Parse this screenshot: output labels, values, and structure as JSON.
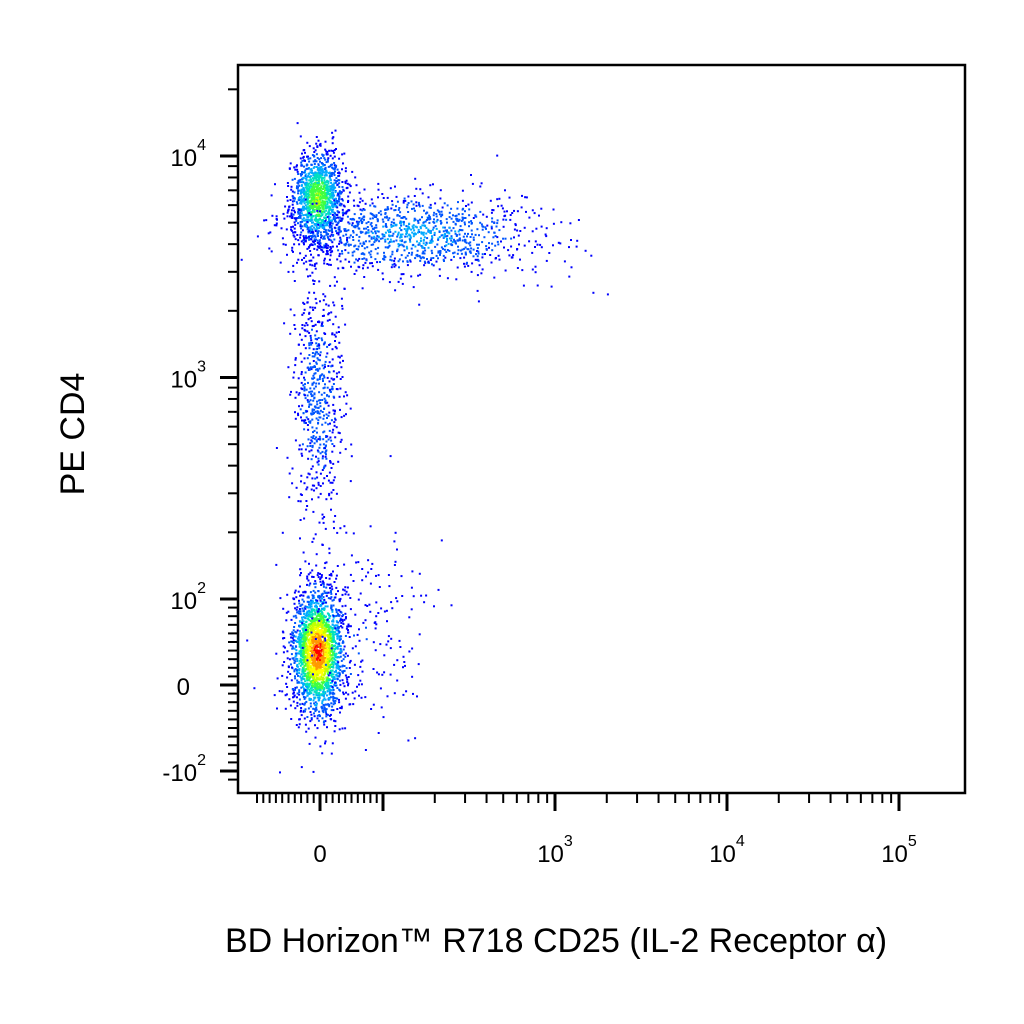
{
  "chart_data": {
    "type": "scatter",
    "plot_style": "flow cytometry pseudocolor density dot plot (biexponential axes)",
    "xlabel": "BD Horizon™ R718 CD25 (IL-2 Receptor α)",
    "ylabel": "PE CD4",
    "x_axis": {
      "scale": "biexponential",
      "range": [
        -200,
        150000
      ],
      "ticks": [
        {
          "value": 0,
          "base": "0",
          "exp": ""
        },
        {
          "value": 1000,
          "base": "10",
          "exp": "3"
        },
        {
          "value": 10000,
          "base": "10",
          "exp": "4"
        },
        {
          "value": 100000,
          "base": "10",
          "exp": "5"
        }
      ]
    },
    "y_axis": {
      "scale": "biexponential",
      "range": [
        -300,
        25000
      ],
      "ticks": [
        {
          "value": -100,
          "base": "-10",
          "exp": "2"
        },
        {
          "value": 0,
          "base": "0",
          "exp": ""
        },
        {
          "value": 100,
          "base": "10",
          "exp": "2"
        },
        {
          "value": 1000,
          "base": "10",
          "exp": "3"
        },
        {
          "value": 10000,
          "base": "10",
          "exp": "4"
        }
      ]
    },
    "density_colors": [
      "#0000ff",
      "#0055ff",
      "#00aaff",
      "#00e0c0",
      "#40ff40",
      "#c0ff00",
      "#ffff00",
      "#ff9900",
      "#ff0000"
    ],
    "populations": [
      {
        "x_center": -5,
        "y_center": 40,
        "x_sd": 20,
        "y_sd": 35,
        "count": 2200,
        "peak_density": 1.0
      },
      {
        "x_center": -5,
        "y_center": 6500,
        "x_sd": 20,
        "y_sd": 1800,
        "count": 1300,
        "peak_density": 0.6
      },
      {
        "x_center": 150,
        "y_center": 4500,
        "x_sd": 190,
        "y_sd": 1100,
        "count": 1100,
        "peak_density": 0.25
      },
      {
        "x_center": -5,
        "y_center": 800,
        "x_sd": 20,
        "y_sd": 700,
        "count": 600,
        "peak_density": 0.15
      },
      {
        "x_center": 50,
        "y_center": 60,
        "x_sd": 60,
        "y_sd": 60,
        "count": 250,
        "peak_density": 0.08
      }
    ]
  }
}
